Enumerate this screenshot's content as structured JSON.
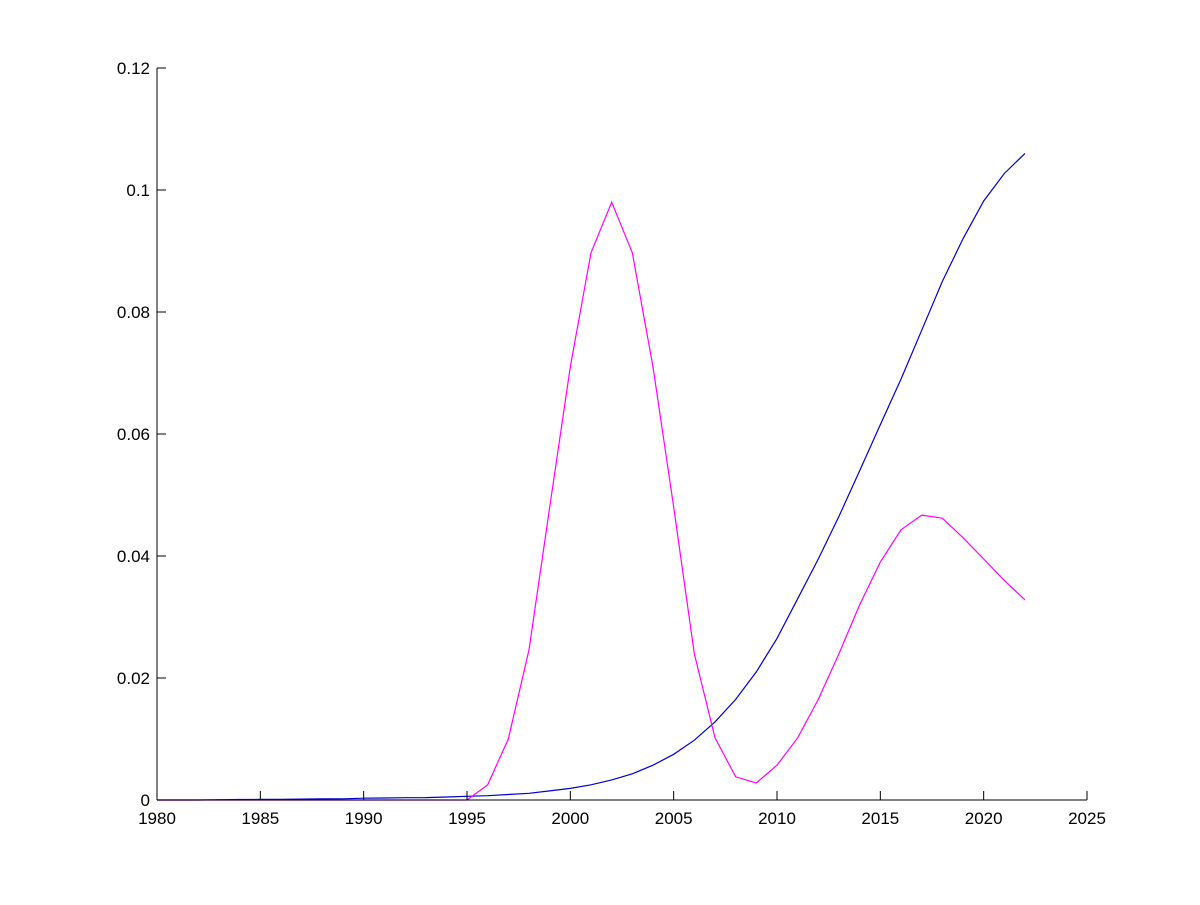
{
  "chart_data": {
    "type": "line",
    "title": "",
    "xlabel": "",
    "ylabel": "",
    "xlim": [
      1980,
      2025
    ],
    "ylim": [
      0,
      0.12
    ],
    "grid": false,
    "xticks": [
      "1980",
      "1985",
      "1990",
      "1995",
      "2000",
      "2005",
      "2010",
      "2015",
      "2020",
      "2025"
    ],
    "yticks": [
      "0",
      "0.02",
      "0.04",
      "0.06",
      "0.08",
      "0.1",
      "0.12"
    ],
    "x": [
      1980,
      1981,
      1982,
      1983,
      1984,
      1985,
      1986,
      1987,
      1988,
      1989,
      1990,
      1991,
      1992,
      1993,
      1994,
      1995,
      1996,
      1997,
      1998,
      1999,
      2000,
      2001,
      2002,
      2003,
      2004,
      2005,
      2006,
      2007,
      2008,
      2009,
      2010,
      2011,
      2012,
      2013,
      2014,
      2015,
      2016,
      2017,
      2018,
      2019,
      2020,
      2021,
      2022
    ],
    "series": [
      {
        "color": "#0000cc",
        "values": [
          0,
          0,
          0,
          5e-05,
          8e-05,
          0.0001,
          0.00012,
          0.00015,
          0.00018,
          0.0002,
          0.0003,
          0.00033,
          0.00037,
          0.0004,
          0.0005,
          0.0006,
          0.0007,
          0.0009,
          0.0011,
          0.0015,
          0.0019,
          0.0025,
          0.0033,
          0.0043,
          0.0057,
          0.0075,
          0.0098,
          0.0128,
          0.0165,
          0.021,
          0.0265,
          0.033,
          0.0395,
          0.0465,
          0.054,
          0.0615,
          0.069,
          0.077,
          0.085,
          0.092,
          0.0982,
          0.1027,
          0.106
        ]
      },
      {
        "color": "#ff00ff",
        "values": [
          0,
          0,
          0,
          0,
          0,
          0,
          0,
          0,
          0,
          0,
          0,
          0,
          0,
          0,
          0,
          0,
          0.0025,
          0.01,
          0.0246,
          0.048,
          0.071,
          0.0897,
          0.098,
          0.0897,
          0.071,
          0.048,
          0.024,
          0.0102,
          0.0038,
          0.0028,
          0.0057,
          0.0102,
          0.0165,
          0.024,
          0.032,
          0.039,
          0.0443,
          0.0467,
          0.0462,
          0.043,
          0.0395,
          0.036,
          0.0328
        ]
      }
    ]
  }
}
